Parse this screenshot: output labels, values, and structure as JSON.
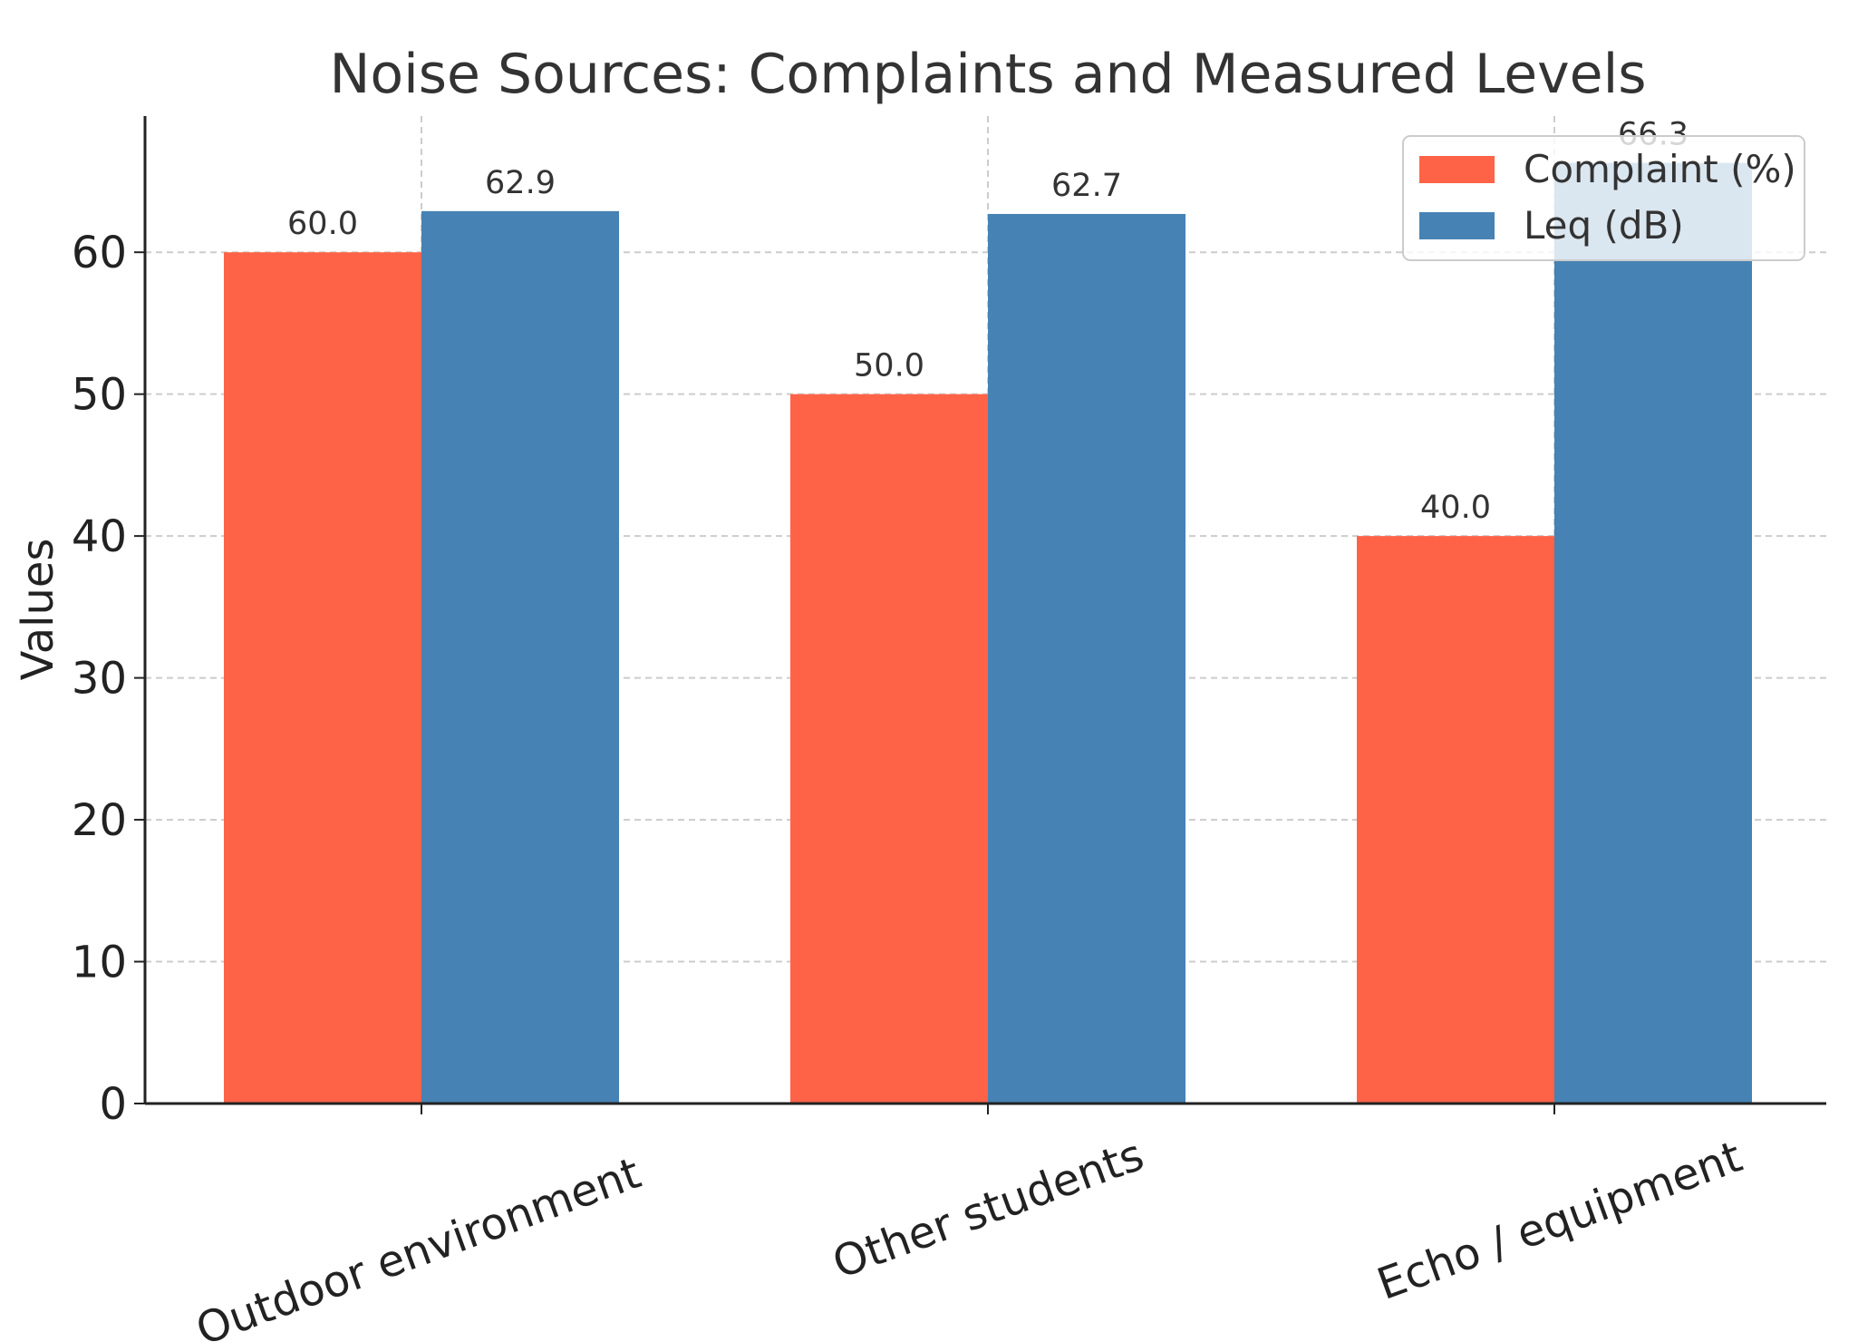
{
  "chart_data": {
    "type": "bar",
    "title": "Noise Sources: Complaints and Measured Levels",
    "xlabel": "",
    "ylabel": "Values",
    "categories": [
      "Outdoor environment",
      "Other students",
      "Echo / equipment"
    ],
    "series": [
      {
        "name": "Complaint (%)",
        "values": [
          60.0,
          50.0,
          40.0
        ],
        "labels": [
          "60.0",
          "50.0",
          "40.0"
        ],
        "color": "#ff6347"
      },
      {
        "name": "Leq (dB)",
        "values": [
          62.9,
          62.7,
          66.3
        ],
        "labels": [
          "62.9",
          "62.7",
          "66.3"
        ],
        "color": "#4682b4"
      }
    ],
    "yticks": [
      0,
      10,
      20,
      30,
      40,
      50,
      60
    ],
    "ylim": [
      0,
      69.6
    ],
    "grid": true,
    "legend": "top-right"
  }
}
